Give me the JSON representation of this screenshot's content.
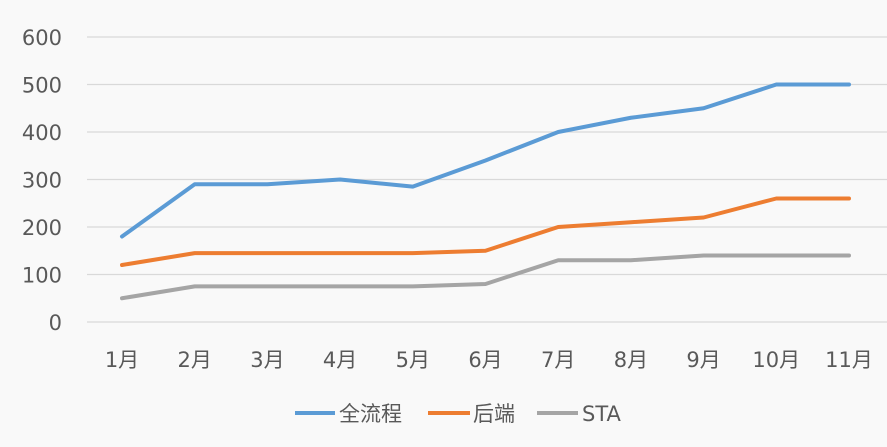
{
  "chart_data": {
    "type": "line",
    "title": "",
    "xlabel": "",
    "ylabel": "",
    "categories": [
      "1月",
      "2月",
      "3月",
      "4月",
      "5月",
      "6月",
      "7月",
      "8月",
      "9月",
      "10月",
      "11月"
    ],
    "series": [
      {
        "name": "全流程",
        "color": "#5B9BD5",
        "values": [
          180,
          290,
          290,
          300,
          285,
          340,
          400,
          430,
          450,
          500,
          500
        ]
      },
      {
        "name": "后端",
        "color": "#ED7D31",
        "values": [
          120,
          145,
          145,
          145,
          145,
          150,
          200,
          210,
          220,
          260,
          260
        ]
      },
      {
        "name": "STA",
        "color": "#A5A5A5",
        "values": [
          50,
          75,
          75,
          75,
          75,
          80,
          130,
          130,
          140,
          140,
          140
        ]
      }
    ],
    "ylim": [
      0,
      600
    ],
    "yticks": [
      0,
      100,
      200,
      300,
      400,
      500,
      600
    ],
    "grid": true,
    "legend_position": "bottom"
  },
  "legend": {
    "items": [
      "全流程",
      "后端",
      "STA"
    ]
  }
}
